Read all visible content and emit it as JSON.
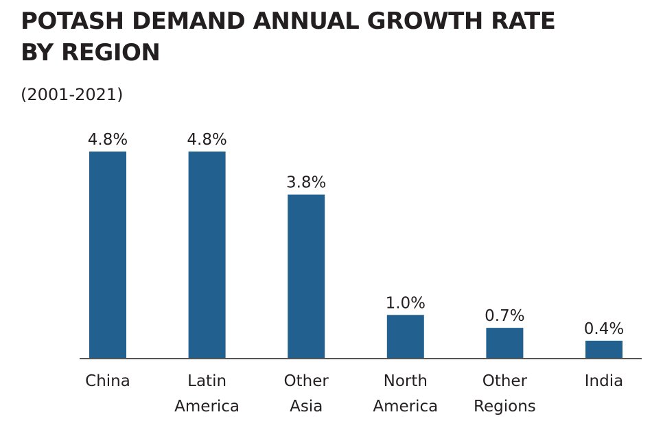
{
  "chart_data": {
    "type": "bar",
    "title_line1": "POTASH DEMAND ANNUAL GROWTH RATE",
    "title_line2": "BY REGION",
    "subtitle": "(2001-2021)",
    "categories": [
      [
        "China"
      ],
      [
        "Latin",
        "America"
      ],
      [
        "Other",
        "Asia"
      ],
      [
        "North",
        "America"
      ],
      [
        "Other",
        "Regions"
      ],
      [
        "India"
      ]
    ],
    "values": [
      4.8,
      4.8,
      3.8,
      1.0,
      0.7,
      0.4
    ],
    "value_labels": [
      "4.8%",
      "4.8%",
      "3.8%",
      "1.0%",
      "0.7%",
      "0.4%"
    ],
    "ylim": [
      0,
      4.8
    ],
    "bar_color": "#22608f",
    "axis_color": "#555555",
    "grid": false
  }
}
